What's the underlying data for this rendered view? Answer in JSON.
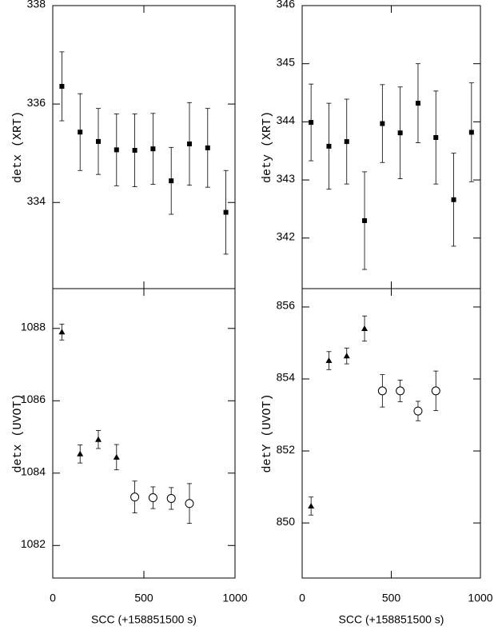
{
  "chart_data": [
    {
      "type": "scatter",
      "ylabel": "detx (XRT)",
      "xlim": [
        0,
        1000
      ],
      "xticks": [
        0,
        500,
        1000
      ],
      "xtick_labels": false,
      "ylim": [
        332.25,
        338
      ],
      "yticks": [
        334,
        336,
        338
      ],
      "series": [
        {
          "marker": "square",
          "color": "#000000",
          "x": [
            50,
            150,
            250,
            350,
            450,
            550,
            650,
            750,
            850,
            950
          ],
          "values": [
            336.36,
            335.43,
            335.24,
            335.07,
            335.06,
            335.09,
            334.44,
            335.19,
            335.11,
            333.8
          ],
          "errors": [
            0.7,
            0.78,
            0.67,
            0.73,
            0.74,
            0.72,
            0.68,
            0.84,
            0.8,
            0.85
          ]
        }
      ]
    },
    {
      "type": "scatter",
      "ylabel": "dety (XRT)",
      "xlim": [
        0,
        1000
      ],
      "xticks": [
        0,
        500,
        1000
      ],
      "xtick_labels": false,
      "ylim": [
        341.13,
        346
      ],
      "yticks": [
        342,
        343,
        344,
        345,
        346
      ],
      "series": [
        {
          "marker": "square",
          "color": "#000000",
          "x": [
            50,
            150,
            250,
            350,
            450,
            550,
            650,
            750,
            850,
            950
          ],
          "values": [
            343.99,
            343.58,
            343.66,
            342.3,
            343.97,
            343.81,
            344.32,
            343.73,
            342.66,
            343.82
          ],
          "errors": [
            0.66,
            0.74,
            0.73,
            0.84,
            0.67,
            0.79,
            0.68,
            0.8,
            0.8,
            0.85
          ]
        }
      ]
    },
    {
      "type": "scatter",
      "ylabel": "detx (UVOT)",
      "xlabel": "SCC (+158851500 s)",
      "xlim": [
        0,
        1000
      ],
      "xticks": [
        0,
        500,
        1000
      ],
      "xtick_labels": true,
      "ylim": [
        1081.1,
        1089.1
      ],
      "yticks": [
        1082,
        1084,
        1086,
        1088
      ],
      "series": [
        {
          "marker": "triangle",
          "color": "#000000",
          "x": [
            50,
            150,
            250,
            350
          ],
          "values": [
            1087.9,
            1084.53,
            1084.93,
            1084.44
          ],
          "errors": [
            0.22,
            0.25,
            0.25,
            0.35
          ]
        },
        {
          "marker": "circle",
          "color": "#000000",
          "x": [
            450,
            550,
            650,
            750
          ],
          "values": [
            1083.34,
            1083.32,
            1083.3,
            1083.16
          ],
          "errors": [
            0.44,
            0.3,
            0.3,
            0.55
          ]
        }
      ]
    },
    {
      "type": "scatter",
      "ylabel": "detY (UVOT)",
      "xlabel": "SCC (+158851500 s)",
      "xlim": [
        0,
        1000
      ],
      "xticks": [
        0,
        500,
        1000
      ],
      "xtick_labels": true,
      "ylim": [
        848.47,
        856.51
      ],
      "yticks": [
        850,
        852,
        854,
        856
      ],
      "series": [
        {
          "marker": "triangle",
          "color": "#000000",
          "x": [
            50,
            150,
            250,
            350
          ],
          "values": [
            850.47,
            854.51,
            854.64,
            855.4
          ],
          "errors": [
            0.25,
            0.25,
            0.22,
            0.35
          ]
        },
        {
          "marker": "circle",
          "color": "#000000",
          "x": [
            450,
            550,
            650,
            750
          ],
          "values": [
            853.67,
            853.67,
            853.11,
            853.67
          ],
          "errors": [
            0.45,
            0.3,
            0.27,
            0.55
          ]
        }
      ]
    }
  ]
}
